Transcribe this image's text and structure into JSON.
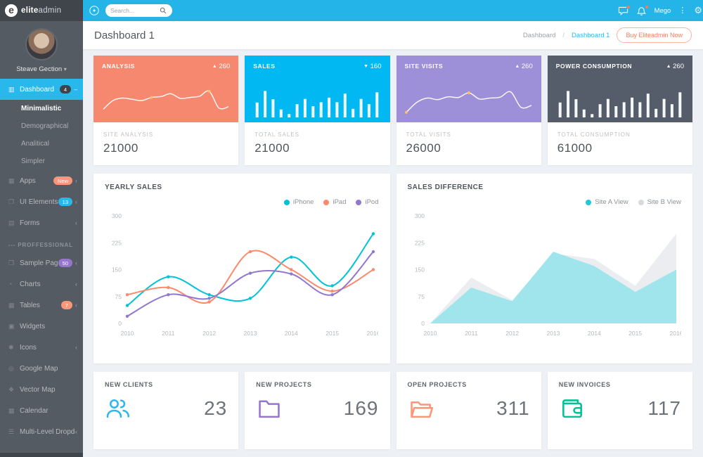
{
  "brand": {
    "bold": "elite",
    "light": "admin",
    "mark": "e"
  },
  "topbar": {
    "search_placeholder": "Search...",
    "user_menu": "Mego",
    "accent_color": "#25b4e8"
  },
  "header": {
    "title": "Dashboard 1",
    "breadcrumb": [
      "Dashboard",
      "Dashboard 1"
    ],
    "breadcrumb_sep": "/",
    "buy_button": "Buy Eliteadmin Now"
  },
  "sidebar": {
    "user": {
      "name": "Steave Gection"
    },
    "items": [
      {
        "label": "Dashboard",
        "icon": "dashboard-icon",
        "badge": {
          "text": "4",
          "color": "#3e444b"
        },
        "chevron": "down",
        "active": true
      },
      {
        "label": "Minimalistic",
        "type": "sub",
        "selected": true
      },
      {
        "label": "Demographical",
        "type": "sub"
      },
      {
        "label": "Analitical",
        "type": "sub"
      },
      {
        "label": "Simpler",
        "type": "sub"
      },
      {
        "label": "Apps",
        "icon": "apps-icon",
        "badge": {
          "text": "New",
          "color": "#fb9678"
        },
        "chevron": "left"
      },
      {
        "label": "UI Elements",
        "icon": "ui-elements-icon",
        "badge": {
          "text": "13",
          "color": "#28b8eb"
        },
        "chevron": "left"
      },
      {
        "label": "Forms",
        "icon": "forms-icon",
        "chevron": "left"
      },
      {
        "label": "--- PROFFESSIONAL",
        "type": "section"
      },
      {
        "label": "Sample Pages",
        "icon": "sample-pages-icon",
        "badge": {
          "text": "50",
          "color": "#9675ce"
        },
        "chevron": "left"
      },
      {
        "label": "Charts",
        "icon": "charts-icon",
        "chevron": "left"
      },
      {
        "label": "Tables",
        "icon": "tables-icon",
        "badge": {
          "text": "7",
          "color": "#fb9678"
        },
        "chevron": "left"
      },
      {
        "label": "Widgets",
        "icon": "widgets-icon"
      },
      {
        "label": "Icons",
        "icon": "icons-icon",
        "chevron": "left"
      },
      {
        "label": "Google Map",
        "icon": "google-map-icon"
      },
      {
        "label": "Vector Map",
        "icon": "vector-map-icon"
      },
      {
        "label": "Calendar",
        "icon": "calendar-icon"
      },
      {
        "label": "Multi-Level Dropdown",
        "icon": "multi-level-icon",
        "chevron": "left"
      }
    ]
  },
  "stat_cards": [
    {
      "title": "ANALYSIS",
      "delta": "260",
      "dir": "up",
      "color": "#f6886f",
      "chart": "line",
      "label": "SITE ANALYSIS",
      "value": "21000",
      "spark": [
        22,
        50,
        58,
        54,
        50,
        60,
        63,
        72,
        57,
        60,
        64,
        80,
        26,
        30
      ],
      "spark_markers": [
        5,
        11
      ]
    },
    {
      "title": "SALES",
      "delta": "160",
      "dir": "down",
      "color": "#02b8f2",
      "chart": "bars",
      "label": "TOTAL SALES",
      "value": "21000",
      "spark": [
        45,
        80,
        55,
        24,
        10,
        40,
        56,
        34,
        46,
        60,
        46,
        72,
        26,
        56,
        40,
        76
      ]
    },
    {
      "title": "SITE VISITS",
      "delta": "260",
      "dir": "up",
      "color": "#9e8fd9",
      "chart": "line",
      "label": "TOTAL VISITS",
      "value": "26000",
      "spark": [
        12,
        44,
        58,
        53,
        62,
        60,
        75,
        55,
        58,
        61,
        78,
        28,
        34
      ],
      "spark_markers": [
        0,
        6
      ]
    },
    {
      "title": "POWER CONSUMPTION",
      "delta": "260",
      "dir": "up",
      "color": "#545d69",
      "chart": "bars",
      "label": "TOTAL CONSUMPTION",
      "value": "61000",
      "spark": [
        45,
        80,
        55,
        24,
        10,
        40,
        56,
        34,
        46,
        60,
        46,
        72,
        26,
        56,
        40,
        76
      ]
    }
  ],
  "chart_data": [
    {
      "type": "line",
      "title": "YEARLY SALES",
      "categories": [
        "2010",
        "2011",
        "2012",
        "2013",
        "2014",
        "2015",
        "2016"
      ],
      "series": [
        {
          "name": "iPhone",
          "color": "#00c3d8",
          "values": [
            50,
            130,
            80,
            70,
            185,
            105,
            250
          ]
        },
        {
          "name": "iPad",
          "color": "#fb8a6a",
          "values": [
            80,
            100,
            60,
            200,
            150,
            90,
            150
          ]
        },
        {
          "name": "iPod",
          "color": "#9177cf",
          "values": [
            20,
            80,
            70,
            140,
            138,
            80,
            200
          ]
        }
      ],
      "ylim": [
        0,
        300
      ],
      "yticks": [
        0,
        75,
        150,
        225,
        300
      ],
      "grid": false,
      "legend_position": "top-right"
    },
    {
      "type": "area",
      "title": "SALES DIFFERENCE",
      "categories": [
        "2010",
        "2011",
        "2012",
        "2013",
        "2014",
        "2015",
        "2016"
      ],
      "series": [
        {
          "name": "Site A View",
          "color": "#9fe5eb",
          "dot_color": "#1fc8d8",
          "values": [
            0,
            100,
            62,
            200,
            160,
            88,
            150
          ]
        },
        {
          "name": "Site B View",
          "color": "#ebedf0",
          "dot_color": "#d6dade",
          "values": [
            0,
            128,
            65,
            195,
            180,
            105,
            250
          ]
        }
      ],
      "ylim": [
        0,
        300
      ],
      "yticks": [
        0,
        75,
        150,
        225,
        300
      ],
      "grid": false,
      "legend_position": "top-right"
    }
  ],
  "bottom_cards": [
    {
      "label": "NEW CLIENTS",
      "value": "23",
      "icon": "users-icon",
      "color": "#2cb6f0"
    },
    {
      "label": "NEW PROJECTS",
      "value": "169",
      "icon": "folder-icon",
      "color": "#9675ce"
    },
    {
      "label": "OPEN PROJECTS",
      "value": "311",
      "icon": "folder-open-icon",
      "color": "#fb9678"
    },
    {
      "label": "NEW INVOICES",
      "value": "117",
      "icon": "wallet-icon",
      "color": "#00c292"
    }
  ]
}
